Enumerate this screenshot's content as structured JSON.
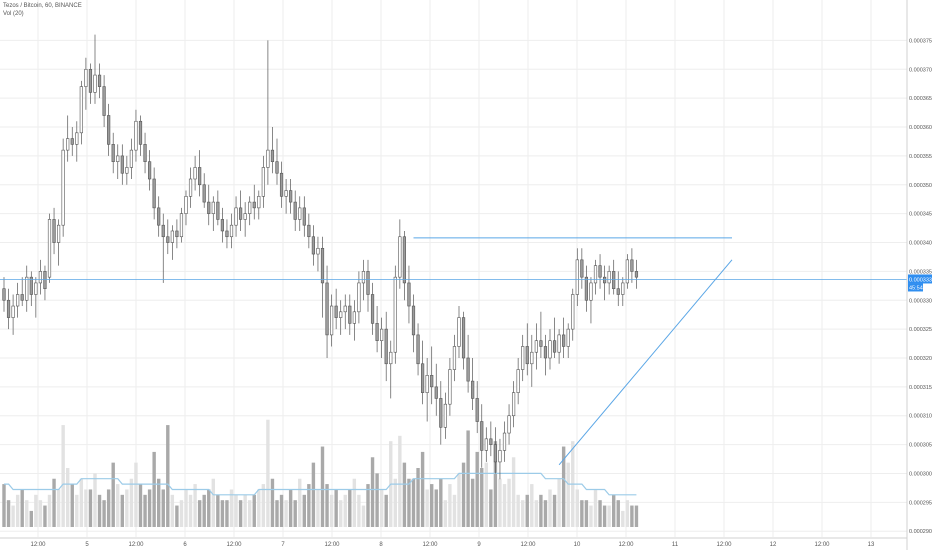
{
  "header": {
    "symbol_line": "Tezos / Bitcoin, 60, BINANCE",
    "volume_legend": "Vol (20)"
  },
  "colors": {
    "background": "#ffffff",
    "grid": "#eeeeee",
    "candle_up": "#ffffff",
    "candle_down": "#9c9c9c",
    "candle_border": "#555555",
    "volume_up": "#e2e2e2",
    "volume_down": "#a9a9a9",
    "volume_ma": "#9ccbe8",
    "trendline": "#5aa6e6",
    "price_line": "#5aa6e6",
    "price_badge": "#2f8ef0",
    "axis_text": "#555555"
  },
  "chart_data": {
    "type": "candlestick",
    "title": "Tezos / Bitcoin, 60, BINANCE",
    "ylim": [
      0.000289,
      0.000382
    ],
    "y_ticks": [
      "0.0003750",
      "0.0003700",
      "0.0003650",
      "0.0003600",
      "0.0003550",
      "0.0003500",
      "0.0003450",
      "0.0003400",
      "0.0003350",
      "0.0003300",
      "0.0003250",
      "0.0003200",
      "0.0003150",
      "0.0003100",
      "0.0003050",
      "0.0003000",
      "0.0002950",
      "0.0002900"
    ],
    "x_ticks": [
      "12:00",
      "5",
      "12:00",
      "6",
      "12:00",
      "7",
      "12:00",
      "8",
      "12:00",
      "9",
      "12:00",
      "10",
      "12:00",
      "11",
      "12:00",
      "12",
      "12:00",
      "13"
    ],
    "grid": true,
    "current_price": "0.0003336",
    "countdown": "45:54",
    "candles": [
      [
        0.000332,
        0.000334,
        0.000328,
        0.00033
      ],
      [
        0.00033,
        0.000332,
        0.000325,
        0.000327
      ],
      [
        0.000327,
        0.000331,
        0.000324,
        0.000329
      ],
      [
        0.000329,
        0.000333,
        0.000327,
        0.000331
      ],
      [
        0.000331,
        0.000334,
        0.000329,
        0.00033
      ],
      [
        0.00033,
        0.000336,
        0.000328,
        0.000334
      ],
      [
        0.000334,
        0.000335,
        0.000329,
        0.000331
      ],
      [
        0.000331,
        0.000334,
        0.000327,
        0.000333
      ],
      [
        0.000333,
        0.000337,
        0.000331,
        0.000335
      ],
      [
        0.000335,
        0.000336,
        0.00033,
        0.000332
      ],
      [
        0.000334,
        0.000345,
        0.000333,
        0.000344
      ],
      [
        0.000344,
        0.000346,
        0.000338,
        0.00034
      ],
      [
        0.00034,
        0.000344,
        0.000336,
        0.000343
      ],
      [
        0.000343,
        0.000358,
        0.000341,
        0.000356
      ],
      [
        0.000356,
        0.000362,
        0.000354,
        0.000358
      ],
      [
        0.000358,
        0.00036,
        0.000355,
        0.000357
      ],
      [
        0.000357,
        0.000361,
        0.000354,
        0.000359
      ],
      [
        0.000359,
        0.000368,
        0.000357,
        0.000367
      ],
      [
        0.000367,
        0.000372,
        0.000363,
        0.00037
      ],
      [
        0.00037,
        0.000371,
        0.000364,
        0.000366
      ],
      [
        0.000366,
        0.000376,
        0.000364,
        0.000369
      ],
      [
        0.000369,
        0.000371,
        0.000365,
        0.000367
      ],
      [
        0.000367,
        0.000369,
        0.00036,
        0.000362
      ],
      [
        0.000362,
        0.000364,
        0.000355,
        0.000357
      ],
      [
        0.000357,
        0.000359,
        0.000352,
        0.000354
      ],
      [
        0.000354,
        0.000357,
        0.000351,
        0.000355
      ],
      [
        0.000355,
        0.000357,
        0.00035,
        0.000352
      ],
      [
        0.000352,
        0.000355,
        0.00035,
        0.000353
      ],
      [
        0.000353,
        0.000358,
        0.000351,
        0.000356
      ],
      [
        0.000356,
        0.000363,
        0.000354,
        0.000361
      ],
      [
        0.000361,
        0.000362,
        0.000355,
        0.000357
      ],
      [
        0.000357,
        0.000359,
        0.000352,
        0.000354
      ],
      [
        0.000354,
        0.000356,
        0.000349,
        0.000351
      ],
      [
        0.000351,
        0.000353,
        0.000344,
        0.000346
      ],
      [
        0.000346,
        0.000348,
        0.000341,
        0.000343
      ],
      [
        0.000343,
        0.000345,
        0.000333,
        0.000341
      ],
      [
        0.000341,
        0.000344,
        0.000338,
        0.00034
      ],
      [
        0.00034,
        0.000343,
        0.000337,
        0.000342
      ],
      [
        0.000342,
        0.000344,
        0.000339,
        0.000341
      ],
      [
        0.000341,
        0.000346,
        0.00034,
        0.000345
      ],
      [
        0.000345,
        0.000349,
        0.000343,
        0.000348
      ],
      [
        0.000348,
        0.000353,
        0.000346,
        0.000351
      ],
      [
        0.000351,
        0.000355,
        0.000349,
        0.000353
      ],
      [
        0.000353,
        0.000356,
        0.000348,
        0.00035
      ],
      [
        0.00035,
        0.000352,
        0.000346,
        0.000347
      ],
      [
        0.000347,
        0.00035,
        0.000343,
        0.000345
      ],
      [
        0.000345,
        0.000348,
        0.000342,
        0.000347
      ],
      [
        0.000347,
        0.000349,
        0.000343,
        0.000344
      ],
      [
        0.000344,
        0.000346,
        0.00034,
        0.000342
      ],
      [
        0.000342,
        0.000344,
        0.000339,
        0.000341
      ],
      [
        0.000341,
        0.000345,
        0.000339,
        0.000343
      ],
      [
        0.000343,
        0.000348,
        0.000341,
        0.000346
      ],
      [
        0.000346,
        0.000349,
        0.000342,
        0.000344
      ],
      [
        0.000344,
        0.000347,
        0.000341,
        0.000345
      ],
      [
        0.000345,
        0.000348,
        0.000343,
        0.000347
      ],
      [
        0.000347,
        0.00035,
        0.000344,
        0.000346
      ],
      [
        0.000346,
        0.000349,
        0.000344,
        0.000348
      ],
      [
        0.000348,
        0.000355,
        0.000346,
        0.000353
      ],
      [
        0.000353,
        0.000375,
        0.00035,
        0.000356
      ],
      [
        0.000356,
        0.00036,
        0.000352,
        0.000354
      ],
      [
        0.000354,
        0.000358,
        0.00035,
        0.000352
      ],
      [
        0.000352,
        0.000354,
        0.000346,
        0.000348
      ],
      [
        0.000348,
        0.000351,
        0.000345,
        0.000349
      ],
      [
        0.000349,
        0.000351,
        0.000345,
        0.000347
      ],
      [
        0.000347,
        0.000349,
        0.000342,
        0.000344
      ],
      [
        0.000344,
        0.000348,
        0.000342,
        0.000346
      ],
      [
        0.000346,
        0.000348,
        0.000341,
        0.000343
      ],
      [
        0.000343,
        0.000345,
        0.000339,
        0.000341
      ],
      [
        0.000341,
        0.000343,
        0.000336,
        0.000338
      ],
      [
        0.000338,
        0.000341,
        0.000335,
        0.000339
      ],
      [
        0.000339,
        0.000341,
        0.000327,
        0.000333
      ],
      [
        0.000333,
        0.000336,
        0.00032,
        0.000324
      ],
      [
        0.000324,
        0.000331,
        0.000322,
        0.000329
      ],
      [
        0.000329,
        0.000332,
        0.000325,
        0.000327
      ],
      [
        0.000327,
        0.00033,
        0.000324,
        0.000328
      ],
      [
        0.000328,
        0.000331,
        0.000325,
        0.000329
      ],
      [
        0.000329,
        0.000331,
        0.000324,
        0.000326
      ],
      [
        0.000326,
        0.00033,
        0.000323,
        0.000328
      ],
      [
        0.000328,
        0.000335,
        0.000326,
        0.000333
      ],
      [
        0.000333,
        0.000337,
        0.00033,
        0.000335
      ],
      [
        0.000335,
        0.000337,
        0.000328,
        0.000331
      ],
      [
        0.000331,
        0.000333,
        0.000324,
        0.000326
      ],
      [
        0.000326,
        0.000329,
        0.000321,
        0.000323
      ],
      [
        0.000323,
        0.000327,
        0.00032,
        0.000325
      ],
      [
        0.000325,
        0.000328,
        0.000316,
        0.000319
      ],
      [
        0.000319,
        0.000323,
        0.000313,
        0.000321
      ],
      [
        0.000321,
        0.000336,
        0.000319,
        0.000334
      ],
      [
        0.000334,
        0.000344,
        0.000332,
        0.000341
      ],
      [
        0.000341,
        0.000342,
        0.00033,
        0.000333
      ],
      [
        0.000333,
        0.000336,
        0.000326,
        0.000329
      ],
      [
        0.000329,
        0.000331,
        0.000321,
        0.000324
      ],
      [
        0.000324,
        0.000326,
        0.000317,
        0.000319
      ],
      [
        0.000319,
        0.000323,
        0.000312,
        0.000314
      ],
      [
        0.000314,
        0.00032,
        0.000309,
        0.000317
      ],
      [
        0.000317,
        0.000322,
        0.000312,
        0.000315
      ],
      [
        0.000315,
        0.000319,
        0.00031,
        0.000313
      ],
      [
        0.000313,
        0.000316,
        0.000305,
        0.000308
      ],
      [
        0.000308,
        0.000314,
        0.000306,
        0.000312
      ],
      [
        0.000312,
        0.00032,
        0.00031,
        0.000318
      ],
      [
        0.000318,
        0.000324,
        0.000316,
        0.000322
      ],
      [
        0.000322,
        0.000329,
        0.00032,
        0.000327
      ],
      [
        0.000327,
        0.000328,
        0.000318,
        0.00032
      ],
      [
        0.00032,
        0.000324,
        0.000314,
        0.000316
      ],
      [
        0.000316,
        0.00032,
        0.000311,
        0.000313
      ],
      [
        0.000313,
        0.000316,
        0.000307,
        0.000309
      ],
      [
        0.000309,
        0.000312,
        0.000301,
        0.000304
      ],
      [
        0.000304,
        0.000308,
        0.000302,
        0.000306
      ],
      [
        0.000306,
        0.000309,
        0.000303,
        0.000305
      ],
      [
        0.000305,
        0.000308,
        0.0003,
        0.000302
      ],
      [
        0.000302,
        0.000306,
        0.000299,
        0.000304
      ],
      [
        0.000304,
        0.000309,
        0.000302,
        0.000307
      ],
      [
        0.000307,
        0.000312,
        0.000305,
        0.00031
      ],
      [
        0.00031,
        0.000316,
        0.000308,
        0.000314
      ],
      [
        0.000314,
        0.00032,
        0.000312,
        0.000318
      ],
      [
        0.000318,
        0.000324,
        0.000316,
        0.000322
      ],
      [
        0.000322,
        0.000326,
        0.000317,
        0.000319
      ],
      [
        0.000319,
        0.000324,
        0.000315,
        0.000321
      ],
      [
        0.000321,
        0.000326,
        0.000318,
        0.000323
      ],
      [
        0.000323,
        0.000328,
        0.00032,
        0.000322
      ],
      [
        0.000322,
        0.000324,
        0.000317,
        0.00032
      ],
      [
        0.00032,
        0.000325,
        0.000318,
        0.000323
      ],
      [
        0.000323,
        0.000327,
        0.00032,
        0.000321
      ],
      [
        0.000321,
        0.000325,
        0.000319,
        0.000324
      ],
      [
        0.000324,
        0.000327,
        0.00032,
        0.000322
      ],
      [
        0.000322,
        0.000326,
        0.00032,
        0.000325
      ],
      [
        0.000325,
        0.000332,
        0.000323,
        0.000331
      ],
      [
        0.000331,
        0.000339,
        0.000329,
        0.000337
      ],
      [
        0.000337,
        0.000339,
        0.000332,
        0.000334
      ],
      [
        0.000334,
        0.000336,
        0.000328,
        0.00033
      ],
      [
        0.00033,
        0.000334,
        0.000326,
        0.000333
      ],
      [
        0.000333,
        0.000337,
        0.000331,
        0.000336
      ],
      [
        0.000336,
        0.000338,
        0.000332,
        0.000334
      ],
      [
        0.000334,
        0.000336,
        0.00033,
        0.000333
      ],
      [
        0.000333,
        0.000336,
        0.000331,
        0.000335
      ],
      [
        0.000335,
        0.000337,
        0.000331,
        0.000332
      ],
      [
        0.000332,
        0.000335,
        0.000329,
        0.000331
      ],
      [
        0.000331,
        0.000334,
        0.000329,
        0.000333
      ],
      [
        0.000333,
        0.000338,
        0.000332,
        0.000337
      ],
      [
        0.000337,
        0.000339,
        0.000333,
        0.000335
      ],
      [
        0.000335,
        0.000337,
        0.000332,
        0.000334
      ]
    ],
    "volumes": [
      8,
      5,
      4,
      6,
      7,
      5,
      3,
      6,
      5,
      4,
      6,
      9,
      7,
      19,
      11,
      8,
      6,
      9,
      7,
      7,
      10,
      6,
      5,
      7,
      12,
      8,
      6,
      7,
      9,
      12,
      8,
      6,
      7,
      14,
      9,
      7,
      19,
      6,
      4,
      5,
      7,
      6,
      8,
      5,
      6,
      7,
      9,
      6,
      5,
      5,
      7,
      6,
      5,
      6,
      5,
      6,
      7,
      8,
      20,
      9,
      5,
      6,
      5,
      7,
      5,
      9,
      6,
      8,
      12,
      7,
      15,
      8,
      6,
      7,
      5,
      6,
      7,
      9,
      6,
      4,
      8,
      13,
      10,
      7,
      6,
      16,
      9,
      17,
      12,
      9,
      9,
      11,
      14,
      7,
      8,
      7,
      9,
      5,
      8,
      6,
      10,
      12,
      18,
      9,
      14,
      11,
      12,
      7,
      16,
      9,
      8,
      9,
      13,
      6,
      5,
      6,
      8,
      5,
      6,
      5,
      7,
      6,
      9,
      15,
      12,
      16,
      7,
      5,
      5,
      4,
      7,
      5,
      4,
      4,
      6,
      5,
      3,
      5,
      4,
      4
    ],
    "volume_ma": [
      8,
      8,
      7,
      7,
      7,
      7,
      7,
      7,
      7,
      7,
      7,
      7,
      7,
      8,
      8,
      8,
      8,
      9,
      9,
      9,
      9,
      9,
      9,
      9,
      9,
      9,
      8,
      8,
      8,
      8,
      8,
      8,
      8,
      8,
      8,
      8,
      8,
      7,
      7,
      7,
      7,
      7,
      7,
      7,
      7,
      7,
      6,
      6,
      6,
      6,
      6,
      6,
      6,
      6,
      6,
      6,
      7,
      7,
      7,
      7,
      7,
      7,
      7,
      7,
      7,
      7,
      7,
      7,
      7,
      7,
      7,
      7,
      7,
      7,
      7,
      7,
      7,
      7,
      7,
      7,
      7,
      7,
      7,
      7,
      7,
      8,
      8,
      8,
      8,
      8,
      9,
      9,
      9,
      9,
      9,
      9,
      9,
      9,
      9,
      9,
      10,
      10,
      10,
      10,
      10,
      10,
      10,
      10,
      10,
      10,
      10,
      10,
      10,
      10,
      10,
      10,
      10,
      10,
      10,
      9,
      9,
      9,
      9,
      9,
      8,
      8,
      8,
      8,
      7,
      7,
      7,
      7,
      7,
      6,
      6,
      6,
      6,
      6,
      6,
      6
    ],
    "vol_max": 22,
    "annotations": {
      "horizontal_resistance": {
        "from_candle": 90,
        "to_candle": 160,
        "price": 0.0003408
      },
      "ascending_trendline": {
        "from_candle": 122,
        "from_price": 0.0003015,
        "to_candle": 160,
        "to_price": 0.000337
      }
    }
  }
}
